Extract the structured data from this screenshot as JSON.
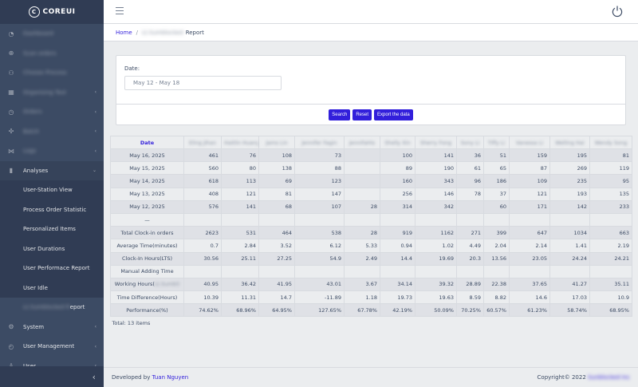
{
  "brand": {
    "logo_letter": "C",
    "name": "COREUI"
  },
  "sidebar": {
    "items": [
      {
        "label": "Dashboard",
        "icon": "speedometer-icon",
        "blurred": true,
        "chevron": false
      },
      {
        "label": "Scan orders",
        "icon": "globe-icon",
        "blurred": true,
        "chevron": false
      },
      {
        "label": "Choose Process",
        "icon": "people-icon",
        "blurred": true,
        "chevron": false
      },
      {
        "label": "Organising Tool",
        "icon": "grid-icon",
        "blurred": true,
        "chevron": true
      },
      {
        "label": "Orders",
        "icon": "clock-icon",
        "blurred": true,
        "chevron": true
      },
      {
        "label": "Batch",
        "icon": "puzzle-icon",
        "blurred": true,
        "chevron": true
      },
      {
        "label": "Logs",
        "icon": "network-icon",
        "blurred": true,
        "chevron": true
      },
      {
        "label": "Analyses",
        "icon": "chart-icon",
        "blurred": false,
        "chevron": true,
        "open": true
      }
    ],
    "sub_items": [
      {
        "label": "User-Station View",
        "blur_prefix": ""
      },
      {
        "label": "Process Order Statistic",
        "blur_prefix": ""
      },
      {
        "label": "Personalized Items",
        "blur_prefix": ""
      },
      {
        "label": "User Durations",
        "blur_prefix": ""
      },
      {
        "label": "User Performace Report",
        "blur_prefix": ""
      },
      {
        "label": "User Idle",
        "blur_prefix": ""
      },
      {
        "label": "eport",
        "blur_prefix": "Lt.Sumblocked R",
        "active": true
      }
    ],
    "bottom_items": [
      {
        "label": "System",
        "icon": "settings-icon",
        "chevron": true
      },
      {
        "label": "User Management",
        "icon": "user-clock-icon",
        "chevron": true
      },
      {
        "label": "User",
        "icon": "user-icon",
        "chevron": true
      }
    ],
    "toggler": "‹"
  },
  "header": {
    "power_icon": "power-icon"
  },
  "breadcrumb": {
    "home": "Home",
    "separator": "/",
    "blurred": "Lt.Sumblocked",
    "current": "Report"
  },
  "filter": {
    "date_label": "Date:",
    "date_value": "May 12 - May 18",
    "buttons": {
      "search": "Search",
      "reset": "Reset",
      "export": "Export the data"
    }
  },
  "table": {
    "date_header": "Date",
    "name_headers": [
      "Eling Jihan",
      "Haitlin Huang",
      "Jams Lin",
      "Jennifer Fagin",
      "JennifaHis",
      "Shelly Xin",
      "Sherry Fong",
      "Sony Li",
      "Tiffy Li",
      "Vanessa Li",
      "Welling Hai",
      "Wendy Song"
    ],
    "rows": [
      {
        "label": "May 16, 2025",
        "values": [
          "461",
          "76",
          "108",
          "73",
          "",
          "100",
          "141",
          "36",
          "51",
          "159",
          "195",
          "81"
        ]
      },
      {
        "label": "May 15, 2025",
        "values": [
          "560",
          "80",
          "138",
          "88",
          "",
          "89",
          "190",
          "61",
          "65",
          "87",
          "269",
          "119"
        ]
      },
      {
        "label": "May 14, 2025",
        "values": [
          "618",
          "113",
          "69",
          "123",
          "",
          "160",
          "343",
          "96",
          "186",
          "109",
          "235",
          "95"
        ]
      },
      {
        "label": "May 13, 2025",
        "values": [
          "408",
          "121",
          "81",
          "147",
          "",
          "256",
          "146",
          "78",
          "37",
          "121",
          "193",
          "135"
        ]
      },
      {
        "label": "May 12, 2025",
        "values": [
          "576",
          "141",
          "68",
          "107",
          "28",
          "314",
          "342",
          "",
          "60",
          "171",
          "142",
          "233"
        ]
      },
      {
        "label": "—",
        "values": [
          "",
          "",
          "",
          "",
          "",
          "",
          "",
          "",
          "",
          "",
          "",
          ""
        ]
      },
      {
        "label": "Total Clock-in orders",
        "values": [
          "2623",
          "531",
          "464",
          "538",
          "28",
          "919",
          "1162",
          "271",
          "399",
          "647",
          "1034",
          "663"
        ]
      },
      {
        "label": "Average Time(minutes)",
        "values": [
          "0.7",
          "2.84",
          "3.52",
          "6.12",
          "5.33",
          "0.94",
          "1.02",
          "4.49",
          "2.04",
          "2.14",
          "1.41",
          "2.19"
        ]
      },
      {
        "label": "Clock-In Hours(LTS)",
        "values": [
          "30.56",
          "25.11",
          "27.25",
          "54.9",
          "2.49",
          "14.4",
          "19.69",
          "20.3",
          "13.56",
          "23.05",
          "24.24",
          "24.21"
        ]
      },
      {
        "label": "Manual Adding Time",
        "values": [
          "",
          "",
          "",
          "",
          "",
          "",
          "",
          "",
          "",
          "",
          "",
          ""
        ]
      },
      {
        "label": "Working Hours(",
        "blur_suffix": "Lt.Sumbl)",
        "values": [
          "40.95",
          "36.42",
          "41.95",
          "43.01",
          "3.67",
          "34.14",
          "39.32",
          "28.89",
          "22.38",
          "37.65",
          "41.27",
          "35.11"
        ]
      },
      {
        "label": "Time Difference(Hours)",
        "values": [
          "10.39",
          "11.31",
          "14.7",
          "-11.89",
          "1.18",
          "19.73",
          "19.63",
          "8.59",
          "8.82",
          "14.6",
          "17.03",
          "10.9"
        ]
      },
      {
        "label": "Performance(%)",
        "values": [
          "74.62%",
          "68.96%",
          "64.95%",
          "127.65%",
          "67.78%",
          "42.19%",
          "50.09%",
          "70.25%",
          "60.57%",
          "61.23%",
          "58.74%",
          "68.95%"
        ]
      }
    ],
    "total_text": "Total: 13 items"
  },
  "footer": {
    "developed_by": "Developed by",
    "author": "Tuan Nguyen",
    "copyright": "Copyright© 2022",
    "company_blurred": "Sunblocked Inc"
  },
  "colors": {
    "sidebar": "#3c4b64",
    "primary": "#321fdb",
    "body": "#ebedef"
  }
}
